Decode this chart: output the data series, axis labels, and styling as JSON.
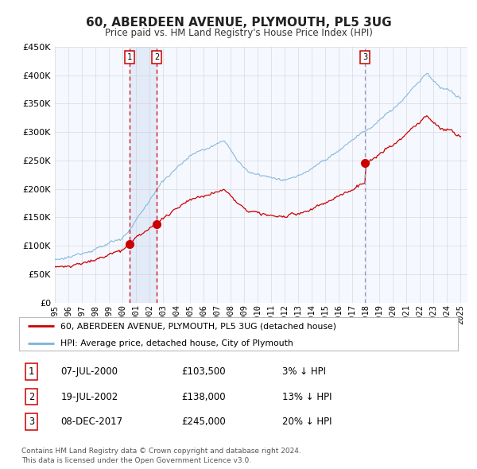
{
  "title": "60, ABERDEEN AVENUE, PLYMOUTH, PL5 3UG",
  "subtitle": "Price paid vs. HM Land Registry's House Price Index (HPI)",
  "hpi_color": "#7ab3d9",
  "price_color": "#cc0000",
  "marker_color": "#cc0000",
  "background_color": "#ffffff",
  "chart_bg": "#f5f8ff",
  "grid_color": "#cccccc",
  "ylim": [
    0,
    450000
  ],
  "yticks": [
    0,
    50000,
    100000,
    150000,
    200000,
    250000,
    300000,
    350000,
    400000,
    450000
  ],
  "purchases": [
    {
      "label": "1",
      "date": "07-JUL-2000",
      "price": 103500,
      "hpi_pct": "3% ↓ HPI",
      "x_year": 2000.52
    },
    {
      "label": "2",
      "date": "19-JUL-2002",
      "price": 138000,
      "hpi_pct": "13% ↓ HPI",
      "x_year": 2002.54
    },
    {
      "label": "3",
      "date": "08-DEC-2017",
      "price": 245000,
      "hpi_pct": "20% ↓ HPI",
      "x_year": 2017.92
    }
  ],
  "legend_entries": [
    "60, ABERDEEN AVENUE, PLYMOUTH, PL5 3UG (detached house)",
    "HPI: Average price, detached house, City of Plymouth"
  ],
  "footer": "Contains HM Land Registry data © Crown copyright and database right 2024.\nThis data is licensed under the Open Government Licence v3.0.",
  "xlim_start": 1995.0,
  "xlim_end": 2025.5
}
